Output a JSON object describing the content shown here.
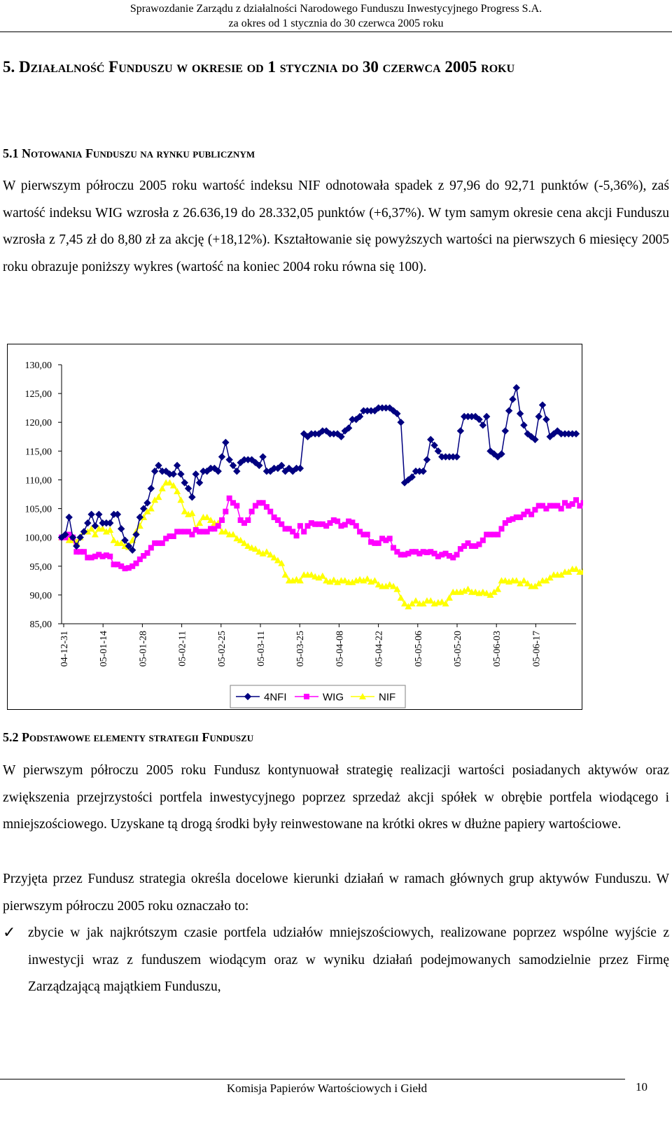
{
  "header": {
    "line1": "Sprawozdanie Zarządu z działalności Narodowego Funduszu Inwestycyjnego Progress S.A.",
    "line2": "za okres od 1 stycznia do 30 czerwca 2005 roku"
  },
  "section5": {
    "title": "5. Działalność Funduszu w okresie od 1 stycznia do 30 czerwca 2005 roku"
  },
  "section5_1": {
    "title": "5.1 Notowania Funduszu na rynku publicznym",
    "paragraph": "W pierwszym półroczu 2005 roku wartość indeksu NIF odnotowała spadek z 97,96 do 92,71 punktów (-5,36%), zaś wartość indeksu WIG wzrosła z 26.636,19 do 28.332,05 punktów (+6,37%). W tym samym okresie cena akcji Funduszu wzrosła z 7,45 zł do 8,80 zł za akcję (+18,12%). Kształtowanie się powyższych wartości na pierwszych 6 miesięcy 2005 roku obrazuje poniższy wykres (wartość na koniec 2004 roku równa się 100)."
  },
  "chart_data": {
    "type": "line",
    "ylim": [
      85,
      130
    ],
    "y_ticks": [
      "130,00",
      "125,00",
      "120,00",
      "115,00",
      "110,00",
      "105,00",
      "100,00",
      "95,00",
      "90,00",
      "85,00"
    ],
    "x_tick_labels": [
      "04-12-31",
      "05-01-14",
      "05-01-28",
      "05-02-11",
      "05-02-25",
      "05-03-11",
      "05-03-25",
      "05-04-08",
      "05-04-22",
      "05-05-06",
      "05-05-20",
      "05-06-03",
      "05-06-17"
    ],
    "legend_position": "bottom",
    "series": [
      {
        "name": "4NFI",
        "color": "#000080",
        "marker": "diamond",
        "values": [
          100.0,
          100.5,
          103.5,
          100.0,
          98.5,
          100.0,
          101.0,
          102.5,
          104.0,
          102.0,
          104.0,
          102.5,
          102.5,
          102.5,
          104.0,
          104.0,
          101.5,
          99.5,
          98.5,
          97.8,
          100.5,
          103.5,
          105.0,
          106.0,
          108.5,
          111.5,
          112.5,
          111.5,
          111.5,
          111.0,
          111.0,
          112.5,
          111.0,
          109.5,
          108.5,
          107.0,
          111.0,
          109.5,
          111.5,
          111.5,
          112.0,
          112.0,
          111.5,
          114.0,
          116.5,
          113.5,
          112.5,
          111.5,
          113.0,
          113.5,
          113.5,
          113.5,
          113.0,
          112.5,
          114.0,
          111.5,
          111.5,
          112.0,
          112.0,
          112.5,
          111.5,
          112.0,
          111.5,
          112.0,
          112.0,
          118.0,
          117.5,
          118.0,
          118.0,
          118.0,
          118.5,
          118.5,
          118.0,
          118.0,
          118.0,
          117.5,
          118.5,
          119.0,
          120.5,
          120.5,
          121.0,
          122.0,
          122.0,
          122.0,
          122.0,
          122.5,
          122.5,
          122.5,
          122.5,
          122.0,
          121.5,
          120.0,
          109.5,
          110.0,
          110.5,
          111.5,
          111.5,
          111.5,
          113.5,
          117.0,
          116.0,
          115.0,
          114.0,
          114.0,
          114.0,
          114.0,
          114.0,
          118.5,
          121.0,
          121.0,
          121.0,
          121.0,
          120.5,
          119.5,
          121.0,
          115.0,
          114.5,
          114.0,
          114.5,
          118.5,
          122.0,
          124.0,
          126.0,
          121.5,
          119.5,
          118.0,
          117.5,
          117.0,
          121.0,
          123.0,
          120.5,
          117.5,
          118.0,
          118.5,
          118.0,
          118.0,
          118.0,
          118.0,
          118.0
        ]
      },
      {
        "name": "WIG",
        "color": "#FF00FF",
        "marker": "square",
        "values": [
          100.0,
          100.0,
          100.5,
          100.0,
          97.5,
          97.5,
          97.5,
          96.5,
          96.5,
          96.7,
          97.0,
          96.7,
          96.9,
          96.7,
          95.3,
          95.3,
          95.0,
          94.6,
          94.7,
          95.0,
          95.5,
          96.2,
          96.8,
          97.3,
          98.2,
          99.0,
          99.0,
          99.0,
          99.8,
          100.2,
          100.2,
          101.0,
          101.0,
          101.0,
          101.0,
          100.5,
          101.3,
          101.0,
          101.0,
          101.0,
          101.5,
          101.5,
          102.0,
          103.0,
          104.5,
          106.8,
          106.0,
          105.5,
          103.0,
          102.5,
          103.0,
          104.5,
          105.5,
          106.0,
          106.0,
          105.3,
          104.5,
          103.5,
          103.0,
          102.3,
          101.5,
          101.5,
          101.0,
          100.3,
          102.0,
          101.0,
          102.0,
          102.5,
          102.3,
          102.3,
          102.3,
          102.0,
          102.5,
          103.0,
          102.8,
          102.0,
          102.2,
          102.8,
          102.6,
          102.0,
          101.0,
          100.5,
          100.5,
          99.2,
          99.0,
          99.0,
          99.8,
          99.5,
          99.8,
          98.2,
          97.5,
          97.0,
          97.0,
          97.2,
          97.5,
          97.5,
          97.2,
          97.5,
          97.4,
          97.5,
          97.2,
          96.7,
          97.0,
          97.2,
          96.8,
          96.5,
          97.0,
          98.0,
          98.5,
          99.0,
          98.5,
          98.5,
          98.8,
          99.5,
          100.5,
          100.5,
          100.5,
          100.5,
          101.5,
          102.5,
          103.0,
          103.2,
          103.5,
          103.5,
          104.0,
          104.5,
          104.0,
          104.8,
          105.5,
          105.5,
          105.0,
          105.5,
          105.5,
          105.5,
          105.0,
          106.0,
          105.5,
          105.8,
          106.5,
          105.5,
          106.0,
          106.5,
          105.8,
          106.5
        ]
      },
      {
        "name": "NIF",
        "color": "#FFFF00",
        "marker": "triangle",
        "values": [
          100.0,
          100.0,
          99.5,
          99.5,
          99.2,
          100.0,
          101.0,
          101.0,
          101.5,
          100.5,
          101.5,
          101.5,
          101.0,
          101.3,
          99.5,
          99.0,
          99.0,
          98.5,
          98.3,
          99.5,
          101.0,
          102.0,
          103.5,
          104.5,
          105.0,
          106.5,
          107.0,
          108.5,
          109.5,
          109.5,
          109.0,
          108.0,
          106.5,
          104.5,
          104.0,
          104.2,
          101.5,
          102.5,
          103.5,
          103.5,
          103.0,
          102.5,
          102.5,
          101.0,
          101.0,
          100.5,
          100.5,
          99.8,
          99.5,
          99.0,
          98.5,
          98.2,
          98.0,
          97.5,
          97.2,
          97.5,
          97.0,
          96.5,
          96.0,
          95.5,
          93.5,
          92.5,
          92.5,
          92.7,
          92.5,
          93.5,
          93.5,
          93.5,
          93.2,
          93.0,
          93.3,
          92.5,
          92.3,
          92.6,
          92.2,
          92.5,
          92.5,
          92.2,
          92.2,
          92.5,
          92.7,
          92.5,
          92.8,
          92.3,
          92.5,
          91.8,
          91.5,
          91.5,
          91.8,
          91.5,
          91.0,
          89.5,
          88.5,
          88.0,
          88.5,
          89.0,
          88.5,
          88.5,
          89.0,
          89.0,
          88.5,
          88.7,
          88.8,
          88.5,
          89.5,
          90.5,
          90.5,
          90.5,
          90.7,
          91.0,
          90.5,
          90.5,
          90.3,
          90.5,
          90.3,
          90.0,
          90.5,
          91.0,
          92.5,
          92.5,
          92.3,
          92.5,
          92.5,
          92.0,
          92.5,
          92.0,
          91.5,
          91.5,
          92.0,
          92.5,
          92.5,
          93.0,
          93.5,
          93.5,
          93.5,
          94.0,
          94.0,
          94.5,
          94.5,
          94.0,
          94.2
        ]
      }
    ]
  },
  "section5_2": {
    "title": "5.2 Podstawowe elementy strategii Funduszu",
    "paragraph1": "W pierwszym półroczu 2005 roku Fundusz kontynuował strategię realizacji wartości posiadanych aktywów oraz zwiększenia przejrzystości portfela inwestycyjnego poprzez sprzedaż akcji spółek w obrębie portfela wiodącego i mniejszościowego. Uzyskane tą drogą środki były reinwestowane na krótki okres w dłużne papiery wartościowe.",
    "paragraph2": "Przyjęta przez Fundusz strategia określa docelowe kierunki działań w ramach głównych grup aktywów Funduszu. W pierwszym półroczu 2005 roku oznaczało to:",
    "bullet_icon": "checkmark-icon",
    "bullet_symbol": "✓",
    "bullet1": "zbycie w jak najkrótszym czasie portfela udziałów mniejszościowych, realizowane poprzez wspólne wyjście z inwestycji wraz z funduszem wiodącym oraz w wyniku działań podejmowanych samodzielnie przez Firmę Zarządzającą majątkiem Funduszu,"
  },
  "footer": {
    "text": "Komisja Papierów Wartościowych i Giełd",
    "page_number": "10"
  }
}
